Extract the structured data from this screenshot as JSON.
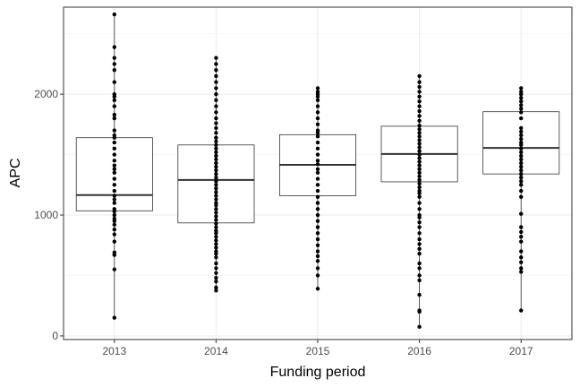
{
  "chart_data": {
    "type": "box",
    "xlabel": "Funding period",
    "ylabel": "APC",
    "categories": [
      "2013",
      "2014",
      "2015",
      "2016",
      "2017"
    ],
    "ylim": [
      -30,
      2720
    ],
    "yticks": [
      0,
      1000,
      2000
    ],
    "grid": true,
    "boxes": [
      {
        "category": "2013",
        "q1": 1035,
        "median": 1165,
        "q3": 1640,
        "min": 150,
        "max": 2660
      },
      {
        "category": "2014",
        "q1": 935,
        "median": 1290,
        "q3": 1580,
        "min": 375,
        "max": 2300
      },
      {
        "category": "2015",
        "q1": 1160,
        "median": 1415,
        "q3": 1665,
        "min": 390,
        "max": 2050
      },
      {
        "category": "2016",
        "q1": 1275,
        "median": 1505,
        "q3": 1735,
        "min": 75,
        "max": 2150
      },
      {
        "category": "2017",
        "q1": 1340,
        "median": 1555,
        "q3": 1855,
        "min": 210,
        "max": 2050
      }
    ],
    "points": {
      "2013": [
        150,
        550,
        670,
        690,
        780,
        840,
        880,
        920,
        950,
        970,
        1000,
        1030,
        1050,
        1100,
        1130,
        1160,
        1200,
        1250,
        1300,
        1350,
        1380,
        1410,
        1450,
        1500,
        1550,
        1600,
        1640,
        1660,
        1700,
        1800,
        1830,
        1900,
        1950,
        1980,
        2000,
        2100,
        2200,
        2250,
        2300,
        2390,
        2660
      ],
      "2014": [
        375,
        400,
        450,
        480,
        520,
        560,
        600,
        650,
        680,
        700,
        730,
        760,
        790,
        820,
        850,
        870,
        900,
        930,
        960,
        990,
        1020,
        1050,
        1080,
        1100,
        1130,
        1160,
        1190,
        1220,
        1250,
        1280,
        1310,
        1340,
        1370,
        1400,
        1430,
        1460,
        1490,
        1520,
        1550,
        1580,
        1610,
        1640,
        1680,
        1720,
        1760,
        1800,
        1850,
        1900,
        1950,
        2000,
        2050,
        2100,
        2150,
        2200,
        2250,
        2300
      ],
      "2015": [
        390,
        500,
        560,
        620,
        660,
        700,
        750,
        800,
        850,
        900,
        950,
        1000,
        1050,
        1100,
        1150,
        1200,
        1250,
        1300,
        1350,
        1380,
        1420,
        1450,
        1500,
        1550,
        1600,
        1650,
        1680,
        1700,
        1750,
        1800,
        1850,
        1900,
        1950,
        1980,
        2000,
        2020,
        2050
      ],
      "2016": [
        75,
        200,
        210,
        340,
        460,
        500,
        560,
        600,
        680,
        720,
        760,
        800,
        850,
        900,
        940,
        980,
        1000,
        1050,
        1100,
        1150,
        1180,
        1200,
        1230,
        1260,
        1290,
        1320,
        1350,
        1380,
        1410,
        1440,
        1470,
        1500,
        1530,
        1560,
        1590,
        1620,
        1650,
        1680,
        1710,
        1740,
        1780,
        1820,
        1860,
        1900,
        1940,
        1980,
        2020,
        2060,
        2100,
        2150
      ],
      "2017": [
        210,
        530,
        560,
        610,
        650,
        700,
        780,
        820,
        860,
        900,
        1010,
        1150,
        1200,
        1250,
        1280,
        1310,
        1340,
        1370,
        1400,
        1430,
        1460,
        1490,
        1520,
        1550,
        1580,
        1600,
        1630,
        1660,
        1690,
        1720,
        1800,
        1850,
        1880,
        1910,
        1940,
        1970,
        2000,
        2020,
        2050
      ]
    }
  }
}
